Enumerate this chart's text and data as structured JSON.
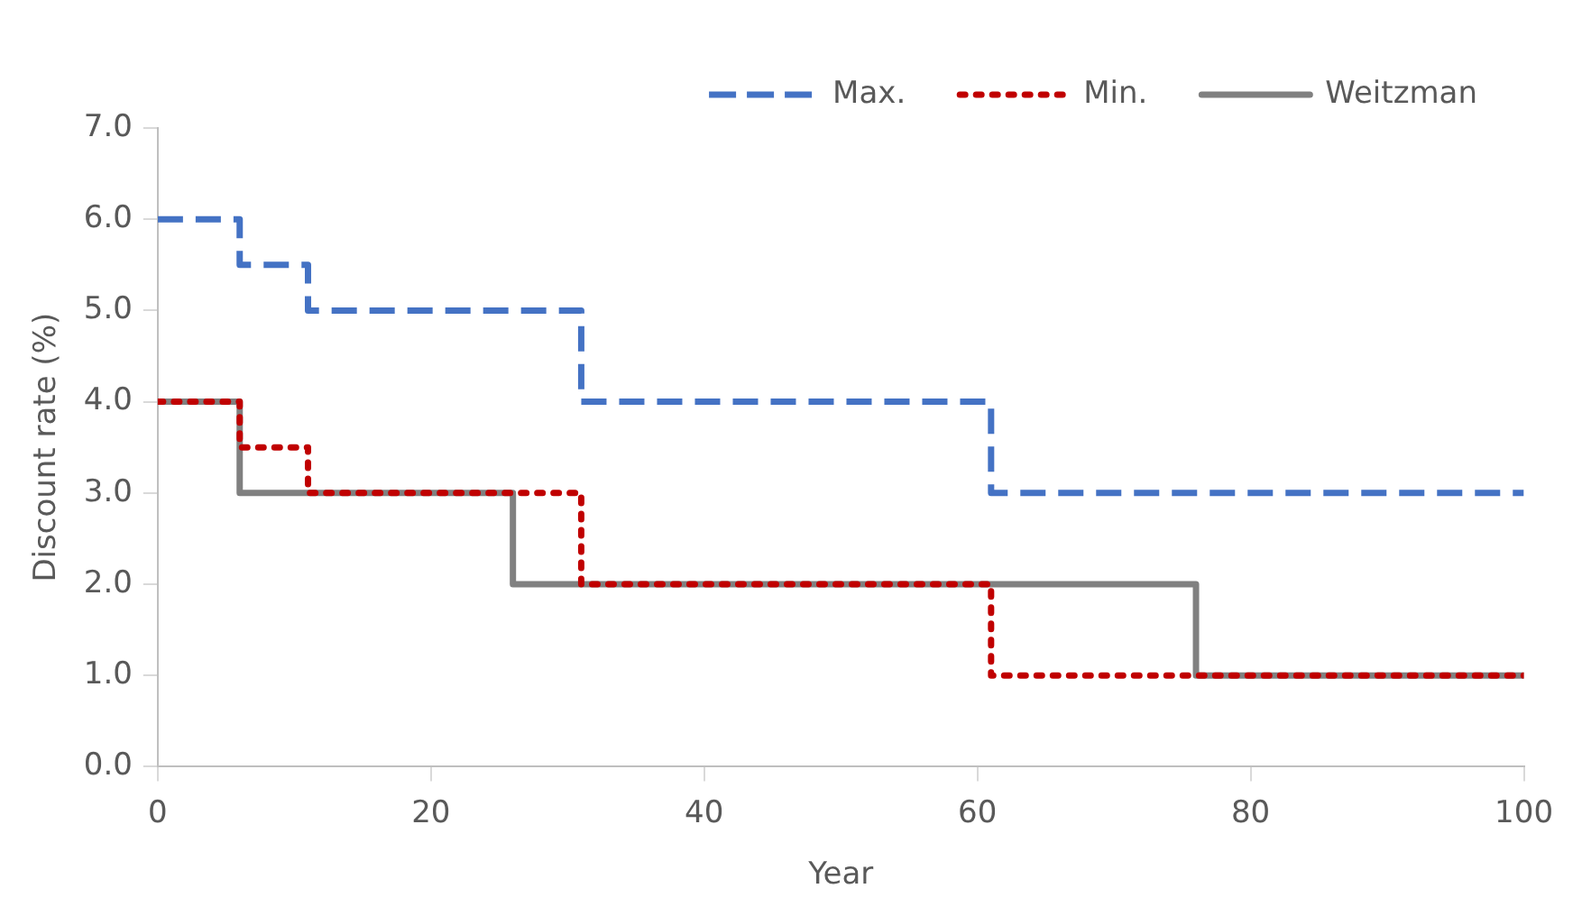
{
  "chart_data": {
    "type": "step",
    "xlabel": "Year",
    "ylabel": "Discount rate (%)",
    "xlim": [
      0,
      100
    ],
    "xticks": [
      0,
      20,
      40,
      60,
      80,
      100
    ],
    "ylim": [
      0,
      7
    ],
    "yticks": [
      {
        "value": 0,
        "label": "0.0"
      },
      {
        "value": 1,
        "label": "1.0"
      },
      {
        "value": 2,
        "label": "2.0"
      },
      {
        "value": 3,
        "label": "3.0"
      },
      {
        "value": 4,
        "label": "4.0"
      },
      {
        "value": 5,
        "label": "5.0"
      },
      {
        "value": 6,
        "label": "6.0"
      },
      {
        "value": 7,
        "label": "7.0"
      }
    ],
    "grid": false,
    "legend": "top",
    "marker": "none",
    "series": [
      {
        "name": "Weitzman",
        "color": "#808080",
        "line_style": "solid",
        "x": [
          0,
          6,
          26,
          76,
          100
        ],
        "values": [
          4,
          3,
          2,
          1,
          1
        ]
      },
      {
        "name": "Min.",
        "color": "#c00000",
        "line_style": "dotted",
        "x": [
          0,
          6,
          11,
          31,
          61,
          100
        ],
        "values": [
          4,
          3.5,
          3,
          2,
          1,
          1
        ]
      },
      {
        "name": "Max.",
        "color": "#4472c4",
        "line_style": "dashed",
        "x": [
          0,
          6,
          11,
          31,
          61,
          100
        ],
        "values": [
          6,
          5.5,
          5,
          4,
          3,
          3
        ]
      }
    ]
  }
}
